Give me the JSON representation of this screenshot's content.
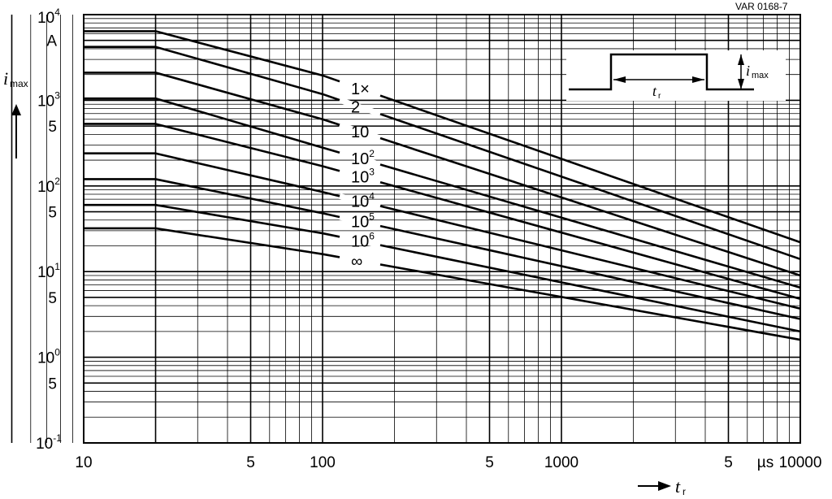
{
  "chart_data": {
    "type": "line",
    "code": "VAR 0168-7",
    "xscale": "log",
    "yscale": "log",
    "xlim": [
      10,
      10000
    ],
    "ylim": [
      0.1,
      10000
    ],
    "grid": true,
    "xlabel": {
      "symbol": "t",
      "sub": "r"
    },
    "ylabel": {
      "symbol": "i",
      "sub": "max"
    },
    "x_unit": "µs",
    "y_unit": "A",
    "x_ticks": [
      "10",
      "5",
      "100",
      "5",
      "1000",
      "5",
      "10000"
    ],
    "y_ticks": [
      {
        "base": "10",
        "exp": "4"
      },
      {
        "text": "A"
      },
      {
        "base": "10",
        "exp": "3"
      },
      {
        "text": "5"
      },
      {
        "base": "10",
        "exp": "2"
      },
      {
        "text": "5"
      },
      {
        "base": "10",
        "exp": "1"
      },
      {
        "text": "5"
      },
      {
        "base": "10",
        "exp": "0"
      },
      {
        "text": "5"
      },
      {
        "base": "10",
        "exp": "-1"
      }
    ],
    "series": [
      {
        "label": {
          "base": "1×"
        },
        "x": [
          10,
          20,
          100,
          10000
        ],
        "y": [
          6400,
          6400,
          1950,
          22
        ]
      },
      {
        "label": {
          "base": "2"
        },
        "x": [
          10,
          20,
          100,
          10000
        ],
        "y": [
          4200,
          4200,
          1180,
          14
        ]
      },
      {
        "label": {
          "base": "10"
        },
        "x": [
          10,
          20,
          100,
          10000
        ],
        "y": [
          2100,
          2100,
          600,
          9
        ]
      },
      {
        "label": {
          "base": "10",
          "exp": "2"
        },
        "x": [
          10,
          20,
          100,
          10000
        ],
        "y": [
          1050,
          1050,
          280,
          6.5
        ]
      },
      {
        "label": {
          "base": "10",
          "exp": "3"
        },
        "x": [
          10,
          20,
          100,
          10000
        ],
        "y": [
          530,
          530,
          170,
          4.8
        ]
      },
      {
        "label": {
          "base": "10",
          "exp": "4"
        },
        "x": [
          10,
          20,
          100,
          10000
        ],
        "y": [
          240,
          240,
          85,
          3.7
        ]
      },
      {
        "label": {
          "base": "10",
          "exp": "5"
        },
        "x": [
          10,
          20,
          100,
          10000
        ],
        "y": [
          120,
          120,
          48,
          2.8
        ]
      },
      {
        "label": {
          "base": "10",
          "exp": "6"
        },
        "x": [
          10,
          20,
          100,
          10000
        ],
        "y": [
          60,
          60,
          28,
          2.0
        ]
      },
      {
        "label": {
          "base": "∞"
        },
        "x": [
          10,
          20,
          100,
          10000
        ],
        "y": [
          32,
          32,
          16,
          1.6
        ]
      }
    ],
    "inset": {
      "label_i": "i",
      "label_i_sub": "max",
      "label_t": "t",
      "label_t_sub": "r"
    }
  }
}
